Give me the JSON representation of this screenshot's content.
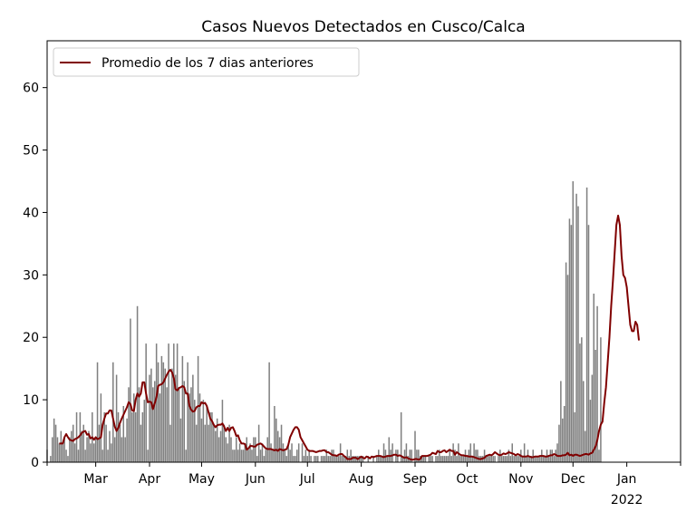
{
  "chart_data": {
    "type": "bar",
    "title": "Casos Nuevos Detectados en Cusco/Calca",
    "xlabel": "",
    "ylabel": "",
    "ylim": [
      0,
      67.5
    ],
    "y_ticks": [
      0,
      10,
      20,
      30,
      40,
      50,
      60
    ],
    "x_ticks": [
      {
        "label": "Mar",
        "date": "2021-03-01"
      },
      {
        "label": "Apr",
        "date": "2021-04-01"
      },
      {
        "label": "May",
        "date": "2021-05-01"
      },
      {
        "label": "Jun",
        "date": "2021-06-01"
      },
      {
        "label": "Jul",
        "date": "2021-07-01"
      },
      {
        "label": "Aug",
        "date": "2021-08-01"
      },
      {
        "label": "Sep",
        "date": "2021-09-01"
      },
      {
        "label": "Oct",
        "date": "2021-10-01"
      },
      {
        "label": "Nov",
        "date": "2021-11-01"
      },
      {
        "label": "Dec",
        "date": "2021-12-01"
      },
      {
        "label": "Jan",
        "sublabel": "2022",
        "date": "2022-01-01"
      }
    ],
    "x_minor_ticks": [
      "2021-02-01",
      "2022-02-01"
    ],
    "xlim": [
      "2021-02-01",
      "2022-02-01"
    ],
    "legend": {
      "position": "top-left",
      "entries": [
        {
          "label": "Promedio de los 7 dias anteriores",
          "color": "#800000"
        }
      ]
    },
    "grid": false,
    "bar_color": "#808080",
    "line_color": "#800000",
    "series": [
      {
        "kind": "bar",
        "x_start": "2021-02-01",
        "values": [
          2,
          0,
          1,
          4,
          7,
          6,
          4,
          3,
          5,
          3,
          4,
          2,
          1,
          4,
          5,
          6,
          3,
          8,
          2,
          8,
          5,
          6,
          2,
          4,
          5,
          3,
          8,
          3,
          4,
          16,
          6,
          11,
          2,
          8,
          6,
          2,
          5,
          3,
          16,
          4,
          14,
          8,
          6,
          4,
          9,
          4,
          7,
          12,
          23,
          8,
          11,
          8,
          25,
          12,
          6,
          8,
          10,
          19,
          2,
          14,
          15,
          12,
          13,
          19,
          16,
          11,
          17,
          16,
          15,
          12,
          19,
          6,
          15,
          19,
          14,
          19,
          12,
          7,
          17,
          13,
          2,
          16,
          11,
          12,
          14,
          10,
          6,
          17,
          11,
          7,
          10,
          6,
          9,
          6,
          8,
          8,
          6,
          5,
          7,
          4,
          5,
          10,
          6,
          4,
          3,
          6,
          4,
          2,
          2,
          4,
          2,
          3,
          2,
          2,
          3,
          4,
          2,
          3,
          2,
          4,
          4,
          1,
          6,
          2,
          3,
          1,
          2,
          4,
          16,
          3,
          2,
          9,
          7,
          5,
          4,
          6,
          3,
          2,
          1,
          3,
          2,
          3,
          1,
          1,
          2,
          3,
          0,
          3,
          1,
          2,
          1,
          2,
          1,
          0,
          1,
          1,
          1,
          0,
          1,
          1,
          1,
          2,
          1,
          1,
          2,
          2,
          1,
          1,
          1,
          3,
          1,
          1,
          1,
          2,
          1,
          2,
          1,
          1,
          1,
          1,
          1,
          1,
          1,
          0,
          0,
          1,
          0,
          0,
          1,
          0,
          1,
          2,
          1,
          1,
          3,
          2,
          1,
          4,
          2,
          3,
          0,
          2,
          2,
          0,
          8,
          1,
          2,
          3,
          1,
          2,
          2,
          0,
          5,
          2,
          2,
          1,
          1,
          1,
          1,
          0,
          1,
          1,
          1,
          0,
          1,
          1,
          2,
          1,
          1,
          1,
          1,
          1,
          2,
          1,
          3,
          2,
          1,
          3,
          1,
          1,
          1,
          2,
          1,
          2,
          3,
          1,
          3,
          2,
          2,
          1,
          1,
          1,
          2,
          1,
          1,
          1,
          1,
          1,
          1,
          0,
          1,
          2,
          1,
          1,
          1,
          1,
          2,
          1,
          3,
          1,
          1,
          1,
          1,
          2,
          1,
          3,
          1,
          2,
          1,
          1,
          2,
          1,
          1,
          1,
          1,
          2,
          1,
          1,
          2,
          1,
          2,
          2,
          1,
          2,
          3,
          6,
          13,
          7,
          9,
          32,
          30,
          39,
          38,
          45,
          8,
          43,
          41,
          19,
          20,
          13,
          5,
          44,
          38,
          10,
          14,
          27,
          18,
          25,
          2,
          20
        ],
        "name": ""
      },
      {
        "kind": "line",
        "name": "Promedio de los 7 dias anteriores",
        "x_start": "2021-02-08",
        "values": [
          3,
          3,
          3,
          4,
          4.5,
          4,
          3.6,
          3.5,
          3.4,
          3.7,
          3.8,
          4,
          4.3,
          4.7,
          4.9,
          5,
          4.4,
          4.5,
          3.8,
          4,
          3.6,
          4,
          3.7,
          3.8,
          4,
          6,
          7,
          7.8,
          7.8,
          8.3,
          8.3,
          7,
          5.7,
          5,
          5.5,
          6.3,
          7,
          7.6,
          8.2,
          8.8,
          9.6,
          9.3,
          8.3,
          8.2,
          10,
          11,
          10.5,
          11,
          12.8,
          12.8,
          11,
          9.6,
          9.7,
          9.6,
          8.5,
          9.4,
          10.4,
          12.2,
          12.4,
          12.5,
          12.8,
          13.4,
          14,
          14.5,
          14.8,
          14.4,
          13.5,
          11.7,
          11.5,
          11.9,
          12,
          12.2,
          12,
          11,
          11,
          9,
          8.4,
          8.1,
          8.2,
          8.8,
          9,
          9,
          9.6,
          9.4,
          9.5,
          9,
          8,
          7,
          6.6,
          6,
          5.6,
          5.9,
          6,
          6,
          6.2,
          5.7,
          5,
          5.5,
          5,
          5.5,
          5.6,
          5,
          4.2,
          4.3,
          3.5,
          3,
          3,
          2.9,
          2,
          2.2,
          2.6,
          2.6,
          2.5,
          2.5,
          2.8,
          2.9,
          3,
          2.8,
          2.5,
          2.2,
          2.1,
          2.1,
          2.1,
          2,
          1.9,
          2,
          1.8,
          2.1,
          2,
          1.9,
          2,
          2.1,
          2.8,
          4,
          4.6,
          5.2,
          5.6,
          5.6,
          5.2,
          4,
          3.5,
          3,
          2.5,
          2,
          1.8,
          1.8,
          1.8,
          1.7,
          1.6,
          1.7,
          1.8,
          1.8,
          1.9,
          1.9,
          1.6,
          1.6,
          1.4,
          1.2,
          1.1,
          1.1,
          1,
          1.2,
          1.3,
          1.3,
          1,
          0.8,
          0.5,
          0.5,
          0.5,
          0.7,
          0.7,
          0.7,
          0.5,
          0.7,
          0.9,
          0.7,
          0.6,
          0.9,
          0.8,
          0.6,
          0.9,
          0.8,
          0.9,
          1,
          1,
          1,
          0.9,
          0.8,
          0.9,
          1,
          1,
          1,
          1.1,
          1.2,
          1.2,
          1,
          1.1,
          1,
          0.8,
          0.7,
          0.8,
          0.6,
          0.5,
          0.4,
          0.4,
          0.5,
          0.5,
          0.4,
          0.5,
          1,
          1,
          1,
          1,
          1.1,
          1.2,
          1.5,
          1.4,
          1.3,
          1.8,
          1.6,
          1.6,
          1.8,
          1.9,
          1.6,
          1.8,
          2,
          1.8,
          1.8,
          1.2,
          1.6,
          1.4,
          1.2,
          1.1,
          1.1,
          1,
          1,
          0.9,
          0.9,
          0.9,
          0.8,
          0.7,
          0.6,
          0.5,
          0.5,
          0.6,
          0.7,
          1,
          1.1,
          1.2,
          1.1,
          1.3,
          1.6,
          1.4,
          1.2,
          1.1,
          1.2,
          1.4,
          1.3,
          1.4,
          1.6,
          1.5,
          1.4,
          1.3,
          1.1,
          1.3,
          1.2,
          1,
          0.9,
          0.9,
          0.9,
          1,
          0.9,
          0.8,
          0.8,
          0.9,
          0.9,
          0.9,
          1,
          1,
          1,
          0.9,
          0.9,
          1,
          1.1,
          1.1,
          1.3,
          1.2,
          1,
          1,
          1,
          1.1,
          1.1,
          1.2,
          1.5,
          1.1,
          1.2,
          1,
          1.2,
          1.2,
          1.1,
          1,
          1.1,
          1.2,
          1.3,
          1.3,
          1.2,
          1.4,
          1.5,
          2,
          2.5,
          3.5,
          5,
          6,
          6.5,
          9.5,
          12,
          16,
          20,
          25,
          29,
          33.5,
          38,
          39.5,
          38,
          33,
          30,
          29.5,
          28,
          25,
          22,
          21,
          21,
          22.5,
          22,
          19.5
        ]
      }
    ]
  }
}
